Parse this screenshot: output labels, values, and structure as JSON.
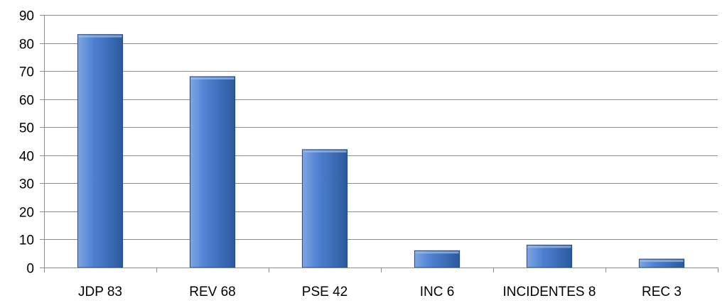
{
  "chart_data": {
    "type": "bar",
    "categories": [
      "JDP 83",
      "REV 68",
      "PSE 42",
      "INC 6",
      "INCIDENTES 8",
      "REC 3"
    ],
    "values": [
      83,
      68,
      42,
      6,
      8,
      3
    ],
    "title": "",
    "xlabel": "",
    "ylabel": "",
    "ylim": [
      0,
      90
    ],
    "yticks": [
      0,
      10,
      20,
      30,
      40,
      50,
      60,
      70,
      80,
      90
    ],
    "grid": true,
    "legend": "none",
    "colors": {
      "bar_light": "#7FA6E4",
      "bar_mid": "#4F81D1",
      "bar_dark": "#2C5A9E",
      "bar_outline": "#23487E",
      "gridline": "#8C8C8C",
      "axis": "#8C8C8C"
    }
  }
}
